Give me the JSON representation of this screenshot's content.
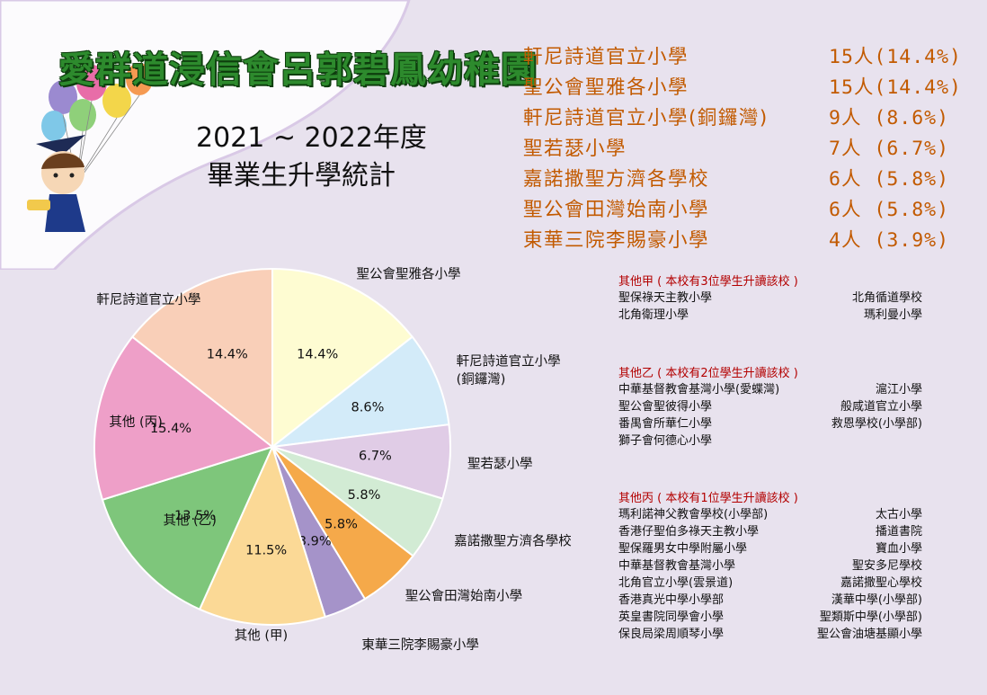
{
  "header": {
    "title": "愛群道浸信會呂郭碧鳳幼稚園",
    "year": "2021 ~ 2022年度",
    "subtitle": "畢業生升學統計"
  },
  "top_schools": [
    {
      "name": "軒尼詩道官立小學",
      "stat": "15人(14.4%)"
    },
    {
      "name": "聖公會聖雅各小學",
      "stat": "15人(14.4%)"
    },
    {
      "name": "軒尼詩道官立小學(銅鑼灣)",
      "stat": "9人 (8.6%)"
    },
    {
      "name": "聖若瑟小學",
      "stat": "7人 (6.7%)"
    },
    {
      "name": "嘉諾撒聖方濟各學校",
      "stat": "6人 (5.8%)"
    },
    {
      "name": "聖公會田灣始南小學",
      "stat": "6人 (5.8%)"
    },
    {
      "name": "東華三院李賜豪小學",
      "stat": "4人 (3.9%)"
    }
  ],
  "others": [
    {
      "title": "其他甲 ( 本校有3位學生升讀該校 )",
      "rows": [
        [
          "聖保祿天主教小學",
          "北角循道學校"
        ],
        [
          "北角衛理小學",
          "瑪利曼小學"
        ]
      ]
    },
    {
      "title": "其他乙 ( 本校有2位學生升讀該校 )",
      "rows": [
        [
          "中華基督教會基灣小學(愛蝶灣)",
          "滬江小學"
        ],
        [
          "聖公會聖彼得小學",
          "般咸道官立小學"
        ],
        [
          "番禺會所華仁小學",
          "救恩學校(小學部)"
        ],
        [
          "獅子會何德心小學",
          ""
        ]
      ]
    },
    {
      "title": "其他丙 ( 本校有1位學生升讀該校 )",
      "rows": [
        [
          "瑪利諾神父教會學校(小學部)",
          "太古小學"
        ],
        [
          "香港仔聖伯多祿天主教小學",
          "播道書院"
        ],
        [
          "聖保羅男女中學附屬小學",
          "寶血小學"
        ],
        [
          "中華基督教會基灣小學",
          "聖安多尼學校"
        ],
        [
          "北角官立小學(雲景道)",
          "嘉諾撒聖心學校"
        ],
        [
          "香港真光中學小學部",
          "漢華中學(小學部)"
        ],
        [
          "英皇書院同學會小學",
          "聖類斯中學(小學部)"
        ],
        [
          "保良局梁周順琴小學",
          "聖公會油塘基顯小學"
        ]
      ]
    }
  ],
  "chart_data": {
    "type": "pie",
    "start_angle_deg": -90,
    "direction": "clockwise",
    "slices": [
      {
        "label": "聖公會聖雅各小學",
        "value": 14.4,
        "value_label": "14.4%",
        "color": "#fefcd2"
      },
      {
        "label": "軒尼詩道官立小學\n(銅鑼灣)",
        "value": 8.6,
        "value_label": "8.6%",
        "color": "#d3ebf9"
      },
      {
        "label": "聖若瑟小學",
        "value": 6.7,
        "value_label": "6.7%",
        "color": "#e0cce6"
      },
      {
        "label": "嘉諾撒聖方濟各學校",
        "value": 5.8,
        "value_label": "5.8%",
        "color": "#d2ebd4"
      },
      {
        "label": "聖公會田灣始南小學",
        "value": 5.8,
        "value_label": "5.8%",
        "color": "#f5a94a"
      },
      {
        "label": "東華三院李賜豪小學",
        "value": 3.9,
        "value_label": "3.9%",
        "color": "#a593c9"
      },
      {
        "label": "其他 (甲)",
        "value": 11.5,
        "value_label": "11.5%",
        "color": "#fbd996"
      },
      {
        "label": "其他 (乙)",
        "value": 13.5,
        "value_label": "13.5%",
        "color": "#7ec67b"
      },
      {
        "label": "其他 (丙)",
        "value": 15.4,
        "value_label": "15.4%",
        "color": "#ee9fc8"
      },
      {
        "label": "軒尼詩道官立小學",
        "value": 14.4,
        "value_label": "14.4%",
        "color": "#f9cfb8"
      }
    ]
  }
}
